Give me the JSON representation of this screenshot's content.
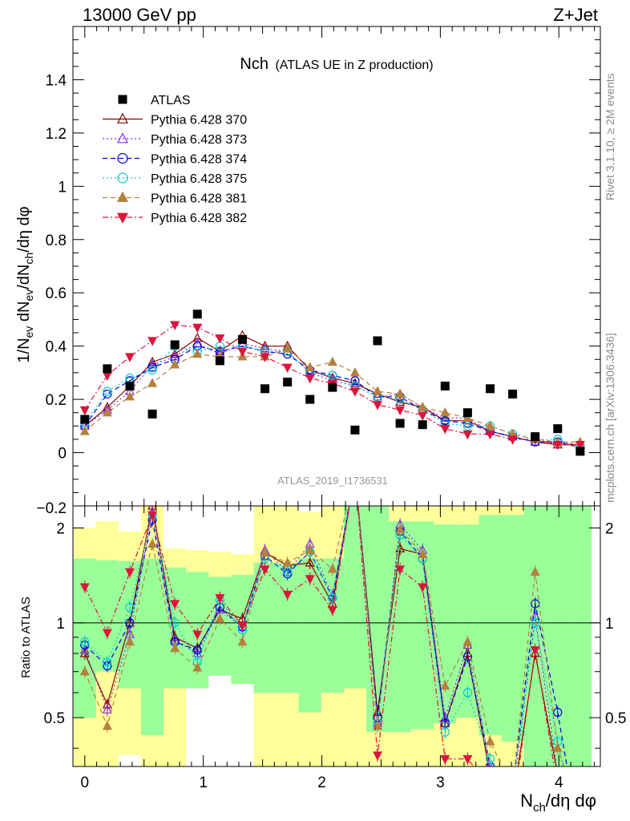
{
  "header": {
    "left": "13000 GeV pp",
    "right": "Z+Jet"
  },
  "side": {
    "rivet": "Rivet 3.1.10, ≥ 2M events",
    "mcplots": "mcplots.cern.ch [arXiv:1306.3436]"
  },
  "chart_data": {
    "type": "scatter",
    "title_main": "Nch",
    "title_sub": "(ATLAS UE in Z production)",
    "analysis_label": "ATLAS_2019_I1736531",
    "xlabel": "N_ch/dη dφ",
    "ylabel": "1/N_ev dN_ev/dN_ch/dη dφ",
    "ratio_ylabel": "Ratio to ATLAS",
    "xlim": [
      -0.1,
      4.35
    ],
    "ylim": [
      -0.2,
      1.6
    ],
    "ratio_ylim": [
      0.35,
      2.35
    ],
    "main_yticks": [
      0,
      0.2,
      0.4,
      0.6,
      0.8,
      1,
      1.2,
      1.4
    ],
    "ratio_yticks": [
      0.5,
      1,
      2
    ],
    "xticks": [
      0,
      1,
      2,
      3,
      4
    ],
    "x": [
      0,
      0.19,
      0.38,
      0.57,
      0.76,
      0.95,
      1.14,
      1.33,
      1.52,
      1.71,
      1.9,
      2.09,
      2.28,
      2.47,
      2.66,
      2.85,
      3.04,
      3.23,
      3.42,
      3.61,
      3.8,
      3.99,
      4.18
    ],
    "data": {
      "name": "ATLAS",
      "values": [
        0.125,
        0.315,
        0.25,
        0.145,
        0.405,
        0.52,
        0.345,
        0.425,
        0.24,
        0.265,
        0.2,
        0.245,
        0.085,
        0.42,
        0.11,
        0.105,
        0.25,
        0.15,
        0.24,
        0.22,
        0.06,
        0.09,
        0.005
      ]
    },
    "series": [
      {
        "name": "Pythia 6.428 370",
        "color": "#8b0000",
        "marker": "triangle-open",
        "dash": "solid",
        "values": [
          0.1,
          0.17,
          0.25,
          0.34,
          0.37,
          0.43,
          0.38,
          0.44,
          0.4,
          0.4,
          0.31,
          0.28,
          0.26,
          0.22,
          0.19,
          0.17,
          0.12,
          0.12,
          0.08,
          0.06,
          0.04,
          0.03,
          0.03
        ],
        "ratio": [
          0.8,
          0.55,
          1.0,
          2.35,
          0.9,
          0.83,
          1.1,
          1.03,
          1.67,
          1.52,
          1.55,
          1.15,
          3.0,
          0.52,
          1.72,
          1.65,
          0.48,
          0.8,
          0.33,
          0.27,
          0.8,
          0.33,
          0.2
        ]
      },
      {
        "name": "Pythia 6.428 373",
        "color": "#8a2be2",
        "marker": "triangle-open",
        "dash": "dotted",
        "values": [
          0.1,
          0.16,
          0.23,
          0.33,
          0.36,
          0.41,
          0.37,
          0.41,
          0.39,
          0.38,
          0.3,
          0.27,
          0.25,
          0.21,
          0.22,
          0.17,
          0.13,
          0.13,
          0.08,
          0.06,
          0.04,
          0.04,
          0.03
        ],
        "ratio": [
          0.82,
          0.53,
          0.92,
          2.25,
          0.88,
          0.8,
          1.1,
          0.97,
          1.7,
          1.45,
          1.78,
          1.22,
          3.0,
          0.48,
          2.05,
          1.7,
          0.5,
          0.85,
          0.35,
          0.28,
          1.05,
          0.33,
          0.2
        ]
      },
      {
        "name": "Pythia 6.428 374",
        "color": "#0000dd",
        "marker": "circle-open",
        "dash": "dashed",
        "values": [
          0.1,
          0.22,
          0.27,
          0.32,
          0.35,
          0.4,
          0.38,
          0.4,
          0.38,
          0.37,
          0.31,
          0.29,
          0.27,
          0.21,
          0.21,
          0.16,
          0.12,
          0.11,
          0.08,
          0.06,
          0.04,
          0.04,
          0.02
        ],
        "ratio": [
          0.85,
          0.73,
          1.0,
          2.12,
          0.87,
          0.82,
          1.12,
          0.97,
          1.63,
          1.43,
          1.68,
          1.2,
          3.0,
          0.5,
          1.95,
          1.6,
          0.48,
          0.78,
          0.35,
          0.3,
          1.15,
          0.52,
          0.2
        ]
      },
      {
        "name": "Pythia 6.428 375",
        "color": "#00ced1",
        "marker": "circle-open",
        "dash": "dotted",
        "values": [
          0.11,
          0.23,
          0.28,
          0.31,
          0.4,
          0.38,
          0.4,
          0.4,
          0.38,
          0.38,
          0.3,
          0.29,
          0.25,
          0.21,
          0.2,
          0.16,
          0.11,
          0.1,
          0.1,
          0.07,
          0.05,
          0.05,
          0.02
        ],
        "ratio": [
          0.87,
          0.75,
          1.12,
          2.2,
          1.0,
          0.75,
          1.18,
          0.95,
          1.6,
          1.45,
          1.68,
          1.2,
          3.0,
          0.48,
          1.9,
          1.6,
          0.45,
          0.6,
          0.37,
          0.3,
          1.0,
          0.42,
          0.2
        ]
      },
      {
        "name": "Pythia 6.428 381",
        "color": "#b5803f",
        "marker": "triangle-filled",
        "dash": "dashed",
        "values": [
          0.08,
          0.15,
          0.21,
          0.26,
          0.33,
          0.37,
          0.36,
          0.36,
          0.36,
          0.39,
          0.32,
          0.34,
          0.3,
          0.23,
          0.22,
          0.17,
          0.15,
          0.13,
          0.1,
          0.07,
          0.05,
          0.04,
          0.04
        ],
        "ratio": [
          0.7,
          0.47,
          0.87,
          1.78,
          0.83,
          0.72,
          1.03,
          0.87,
          1.67,
          1.55,
          1.7,
          1.48,
          3.0,
          0.47,
          1.98,
          1.65,
          0.63,
          0.87,
          0.42,
          0.3,
          1.45,
          0.4,
          0.25
        ]
      },
      {
        "name": "Pythia 6.428 382",
        "color": "#dc143c",
        "marker": "triangle-down-filled",
        "dash": "dashdot",
        "values": [
          0.16,
          0.29,
          0.36,
          0.42,
          0.48,
          0.47,
          0.43,
          0.38,
          0.36,
          0.32,
          0.28,
          0.26,
          0.23,
          0.18,
          0.16,
          0.14,
          0.09,
          0.07,
          0.07,
          0.05,
          0.05,
          0.03,
          0.03
        ],
        "ratio": [
          1.3,
          0.93,
          1.45,
          2.2,
          1.15,
          0.92,
          1.2,
          0.98,
          1.48,
          1.23,
          1.38,
          1.1,
          3.0,
          0.38,
          1.48,
          1.3,
          0.37,
          0.37,
          0.3,
          0.25,
          0.82,
          0.3,
          0.2
        ]
      }
    ],
    "ratio_bands": {
      "green_lo": [
        0.5,
        0.7,
        0.62,
        0.44,
        0.62,
        0.62,
        0.68,
        0.64,
        0.6,
        0.6,
        0.52,
        0.6,
        0.62,
        0.45,
        0.45,
        0.46,
        0.48,
        0.5,
        0.44,
        0.42,
        0.3,
        0.2,
        0.2
      ],
      "green_hi": [
        1.6,
        1.58,
        1.57,
        1.6,
        1.5,
        1.45,
        1.4,
        1.42,
        1.55,
        1.55,
        1.6,
        1.6,
        2.35,
        2.35,
        2.1,
        2.1,
        2.05,
        2.05,
        2.2,
        2.2,
        2.35,
        2.35,
        2.35
      ],
      "yellow_lo": [
        0.35,
        0.35,
        0.38,
        0.35,
        0.35,
        0.72,
        0.7,
        0.68,
        0.35,
        0.35,
        0.35,
        0.35,
        0.35,
        0.35,
        0.35,
        0.35,
        0.35,
        0.35,
        0.35,
        0.35,
        0.35,
        0.35,
        0.35
      ],
      "yellow_hi": [
        2.0,
        2.1,
        1.95,
        2.35,
        1.72,
        1.7,
        1.68,
        1.65,
        2.35,
        2.35,
        2.25,
        2.35,
        2.35,
        2.35,
        2.35,
        2.35,
        2.35,
        2.35,
        2.35,
        2.35,
        2.35,
        2.35,
        2.35
      ]
    }
  }
}
